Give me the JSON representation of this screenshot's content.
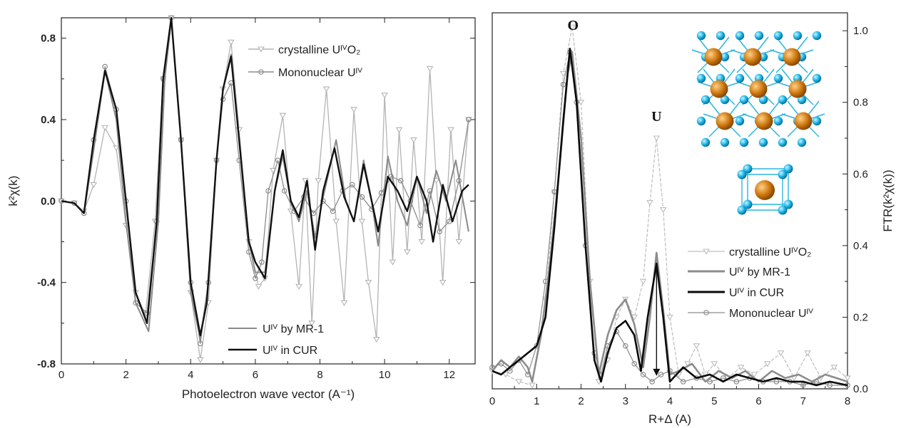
{
  "chart_data": [
    {
      "type": "line",
      "xlabel": "Photoelectron wave vector (A⁻¹)",
      "ylabel": "k²χ(k)",
      "xlim": [
        0,
        12.8
      ],
      "ylim": [
        -0.8,
        0.9
      ],
      "xticks": [
        "0",
        "2",
        "4",
        "6",
        "8",
        "10",
        "12"
      ],
      "yticks": [
        "-0.8",
        "-0.4",
        "0.0",
        "0.4",
        "0.8"
      ],
      "legend_top": [
        "crystalline UᴵⱽO₂",
        "Mononuclear Uᴵⱽ"
      ],
      "legend_bottom": [
        "Uᴵⱽ by MR-1",
        "Uᴵⱽ in CUR"
      ],
      "series": [
        {
          "name": "crystalline UIVO2",
          "color": "#b4b4b4",
          "marker": "triangle-down",
          "x": [
            0,
            0.4,
            0.7,
            1.0,
            1.35,
            1.7,
            2.0,
            2.3,
            2.6,
            2.9,
            3.15,
            3.4,
            3.7,
            4.0,
            4.3,
            4.55,
            4.8,
            5.0,
            5.25,
            5.5,
            5.8,
            6.1,
            6.3,
            6.55,
            6.85,
            7.1,
            7.35,
            7.55,
            7.75,
            7.95,
            8.2,
            8.5,
            8.75,
            9.05,
            9.3,
            9.5,
            9.75,
            10.0,
            10.25,
            10.45,
            10.7,
            10.9,
            11.15,
            11.4,
            11.6,
            11.8,
            12.05,
            12.3,
            12.6
          ],
          "y": [
            0.0,
            -0.01,
            -0.05,
            0.08,
            0.36,
            0.26,
            -0.12,
            -0.45,
            -0.56,
            -0.1,
            0.6,
            0.9,
            0.3,
            -0.45,
            -0.78,
            -0.5,
            0.2,
            0.55,
            0.78,
            0.35,
            -0.2,
            -0.42,
            -0.38,
            0.15,
            0.42,
            -0.05,
            -0.42,
            0.1,
            -0.6,
            0.1,
            0.55,
            -0.1,
            -0.5,
            0.45,
            -0.1,
            -0.4,
            -0.68,
            0.52,
            -0.3,
            0.35,
            -0.25,
            0.3,
            -0.2,
            0.65,
            0.1,
            -0.4,
            0.35,
            -0.2,
            0.4
          ]
        },
        {
          "name": "Mononuclear UIV",
          "color": "#8c8c8c",
          "marker": "circle",
          "x": [
            0,
            0.4,
            0.7,
            1.0,
            1.35,
            1.7,
            2.0,
            2.3,
            2.65,
            2.95,
            3.15,
            3.4,
            3.7,
            4.0,
            4.3,
            4.55,
            4.8,
            5.0,
            5.25,
            5.5,
            5.8,
            6.0,
            6.2,
            6.4,
            6.7,
            6.9,
            7.2,
            7.5,
            7.8,
            8.1,
            8.4,
            8.7,
            9.0,
            9.3,
            9.6,
            9.9,
            10.2,
            10.5,
            10.8,
            11.1,
            11.4,
            11.7,
            12.0,
            12.3,
            12.6
          ],
          "y": [
            0.0,
            -0.01,
            -0.06,
            0.3,
            0.66,
            0.45,
            0.0,
            -0.5,
            -0.55,
            -0.1,
            0.6,
            0.9,
            0.3,
            -0.4,
            -0.7,
            -0.4,
            0.2,
            0.5,
            0.58,
            0.2,
            -0.25,
            -0.38,
            -0.3,
            0.05,
            0.2,
            0.05,
            -0.05,
            0.02,
            -0.06,
            0.0,
            -0.05,
            0.05,
            0.08,
            0.02,
            -0.04,
            0.04,
            0.12,
            0.1,
            0.0,
            -0.12,
            0.05,
            -0.15,
            -0.1,
            0.1,
            0.4
          ]
        },
        {
          "name": "UIV by MR-1",
          "color": "#8a8a8a",
          "marker": "none",
          "x": [
            0,
            0.4,
            0.7,
            1.0,
            1.35,
            1.7,
            2.0,
            2.3,
            2.7,
            3.0,
            3.2,
            3.4,
            3.7,
            4.0,
            4.3,
            4.55,
            4.8,
            5.0,
            5.25,
            5.5,
            5.8,
            6.0,
            6.3,
            6.6,
            6.85,
            7.1,
            7.35,
            7.6,
            7.85,
            8.1,
            8.5,
            8.8,
            9.05,
            9.35,
            9.6,
            9.8,
            10.1,
            10.4,
            10.7,
            11.0,
            11.3,
            11.6,
            11.9,
            12.2,
            12.6
          ],
          "y": [
            0.0,
            -0.01,
            -0.06,
            0.25,
            0.64,
            0.4,
            -0.1,
            -0.5,
            -0.64,
            -0.1,
            0.6,
            0.89,
            0.3,
            -0.45,
            -0.68,
            -0.4,
            0.2,
            0.55,
            0.72,
            0.3,
            -0.2,
            -0.35,
            -0.35,
            0.05,
            0.22,
            0.0,
            -0.1,
            0.05,
            -0.18,
            0.02,
            0.3,
            0.0,
            -0.1,
            0.2,
            0.0,
            -0.22,
            0.22,
            0.0,
            -0.12,
            0.12,
            -0.06,
            0.15,
            0.0,
            0.2,
            -0.15
          ]
        },
        {
          "name": "UIV in CUR",
          "color": "#111111",
          "marker": "none",
          "x": [
            0,
            0.4,
            0.7,
            1.0,
            1.35,
            1.7,
            2.0,
            2.3,
            2.65,
            2.95,
            3.15,
            3.4,
            3.7,
            4.0,
            4.3,
            4.5,
            4.8,
            5.0,
            5.25,
            5.5,
            5.8,
            6.0,
            6.3,
            6.6,
            6.85,
            7.1,
            7.35,
            7.6,
            7.85,
            8.1,
            8.45,
            8.75,
            9.05,
            9.35,
            9.6,
            9.8,
            10.1,
            10.4,
            10.7,
            11.0,
            11.3,
            11.5,
            11.8,
            12.1,
            12.4,
            12.6
          ],
          "y": [
            0.0,
            -0.01,
            -0.06,
            0.3,
            0.64,
            0.45,
            0.0,
            -0.45,
            -0.6,
            -0.1,
            0.6,
            0.9,
            0.3,
            -0.4,
            -0.66,
            -0.5,
            0.2,
            0.55,
            0.71,
            0.3,
            -0.2,
            -0.3,
            -0.38,
            0.05,
            0.25,
            0.0,
            -0.08,
            0.1,
            -0.24,
            0.05,
            0.26,
            0.02,
            -0.1,
            0.18,
            0.0,
            -0.15,
            0.12,
            0.05,
            -0.05,
            0.12,
            0.0,
            -0.2,
            0.08,
            -0.1,
            0.05,
            0.08
          ]
        }
      ]
    },
    {
      "type": "line",
      "xlabel": "R+Δ (A)",
      "ylabel": "FTR(k²χ(k))",
      "xlim": [
        0,
        8
      ],
      "ylim": [
        0,
        1.05
      ],
      "xticks": [
        "0",
        "1",
        "2",
        "3",
        "4",
        "5",
        "6",
        "7",
        "8"
      ],
      "yticks": [
        "0.0",
        "0.2",
        "0.4",
        "0.6",
        "0.8",
        "1.0"
      ],
      "annotations": [
        "O",
        "U"
      ],
      "legend": [
        "crystalline UᴵⱽO₂",
        "Uᴵⱽ by MR-1",
        "Uᴵⱽ in CUR",
        "Mononuclear Uᴵⱽ"
      ],
      "arrow": {
        "x": 3.7,
        "from_y": 0.35,
        "to_y": 0.04
      },
      "series": [
        {
          "name": "crystalline UIVO2",
          "color": "#bdbdbd",
          "marker": "triangle-down",
          "x": [
            0,
            0.3,
            0.6,
            0.9,
            1.2,
            1.4,
            1.6,
            1.8,
            2.0,
            2.2,
            2.4,
            2.6,
            2.8,
            3.0,
            3.2,
            3.4,
            3.55,
            3.7,
            3.85,
            4.0,
            4.2,
            4.4,
            4.6,
            4.8,
            5.0,
            5.3,
            5.6,
            5.9,
            6.2,
            6.5,
            6.8,
            7.1,
            7.4,
            7.7,
            8.0
          ],
          "y": [
            0.05,
            0.04,
            0.02,
            0.01,
            0.25,
            0.55,
            0.88,
            1.01,
            0.8,
            0.3,
            0.02,
            0.08,
            0.2,
            0.25,
            0.2,
            0.3,
            0.52,
            0.7,
            0.5,
            0.2,
            0.04,
            0.07,
            0.12,
            0.04,
            0.07,
            0.03,
            0.06,
            0.04,
            0.07,
            0.1,
            0.03,
            0.1,
            0.03,
            0.06,
            0.03
          ]
        },
        {
          "name": "UIV by MR-1",
          "color": "#8c8c8c",
          "marker": "none",
          "x": [
            0,
            0.2,
            0.4,
            0.6,
            0.8,
            0.9,
            1.1,
            1.3,
            1.5,
            1.7,
            1.8,
            2.0,
            2.2,
            2.4,
            2.6,
            2.8,
            3.0,
            3.2,
            3.4,
            3.55,
            3.7,
            3.85,
            4.0,
            4.2,
            4.5,
            4.8,
            5.1,
            5.4,
            5.7,
            6.0,
            6.3,
            6.6,
            6.9,
            7.2,
            7.5,
            8.0
          ],
          "y": [
            0.05,
            0.08,
            0.06,
            0.09,
            0.06,
            0.02,
            0.15,
            0.35,
            0.6,
            0.88,
            0.94,
            0.7,
            0.3,
            0.04,
            0.15,
            0.22,
            0.25,
            0.18,
            0.06,
            0.2,
            0.38,
            0.22,
            0.04,
            0.05,
            0.07,
            0.02,
            0.05,
            0.03,
            0.05,
            0.02,
            0.05,
            0.03,
            0.04,
            0.02,
            0.04,
            0.02
          ]
        },
        {
          "name": "UIV in CUR",
          "color": "#0a0a0a",
          "marker": "none",
          "x": [
            0,
            0.2,
            0.4,
            0.6,
            0.8,
            1.0,
            1.2,
            1.4,
            1.6,
            1.75,
            1.9,
            2.1,
            2.3,
            2.45,
            2.6,
            2.8,
            3.0,
            3.2,
            3.35,
            3.5,
            3.7,
            3.85,
            4.0,
            4.3,
            4.6,
            4.9,
            5.2,
            5.5,
            5.8,
            6.1,
            6.4,
            6.7,
            7.0,
            7.3,
            7.6,
            8.0
          ],
          "y": [
            0.05,
            0.04,
            0.06,
            0.08,
            0.1,
            0.12,
            0.2,
            0.45,
            0.75,
            0.95,
            0.8,
            0.4,
            0.08,
            0.02,
            0.1,
            0.17,
            0.19,
            0.15,
            0.05,
            0.2,
            0.35,
            0.2,
            0.02,
            0.06,
            0.03,
            0.04,
            0.02,
            0.04,
            0.03,
            0.02,
            0.03,
            0.02,
            0.02,
            0.01,
            0.02,
            0.01
          ]
        },
        {
          "name": "Mononuclear UIV",
          "color": "#8c8c8c",
          "marker": "circle",
          "x": [
            0,
            0.2,
            0.4,
            0.6,
            0.8,
            1.0,
            1.2,
            1.4,
            1.6,
            1.75,
            1.9,
            2.1,
            2.3,
            2.45,
            2.6,
            2.8,
            3.0,
            3.2,
            3.4,
            3.6,
            3.8,
            4.0,
            4.3,
            4.6,
            4.9,
            5.2,
            5.5,
            5.8,
            6.1,
            6.4,
            6.7,
            7.0,
            7.3,
            7.6,
            8.0
          ],
          "y": [
            0.06,
            0.07,
            0.05,
            0.08,
            0.04,
            0.12,
            0.3,
            0.55,
            0.85,
            0.94,
            0.8,
            0.4,
            0.1,
            0.04,
            0.12,
            0.16,
            0.12,
            0.07,
            0.04,
            0.02,
            0.04,
            0.05,
            0.02,
            0.03,
            0.02,
            0.03,
            0.02,
            0.03,
            0.02,
            0.02,
            0.02,
            0.01,
            0.02,
            0.01,
            0.01
          ]
        }
      ]
    }
  ]
}
